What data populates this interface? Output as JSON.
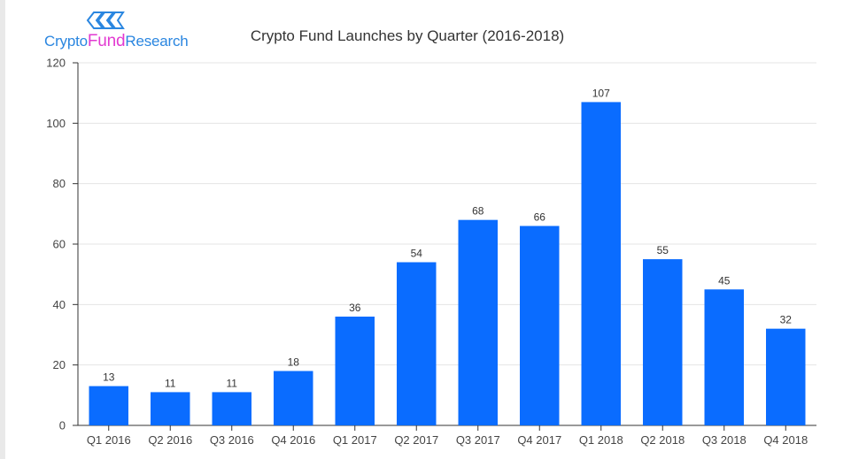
{
  "logo": {
    "part1": "Crypto",
    "part2": "Fund",
    "part3": "Research",
    "color_primary": "#2a86e0",
    "color_accent": "#e23ad1"
  },
  "chart_data": {
    "type": "bar",
    "title": "Crypto Fund Launches by Quarter (2016-2018)",
    "xlabel": "",
    "ylabel": "",
    "categories": [
      "Q1 2016",
      "Q2 2016",
      "Q3 2016",
      "Q4 2016",
      "Q1 2017",
      "Q2 2017",
      "Q3 2017",
      "Q4 2017",
      "Q1 2018",
      "Q2 2018",
      "Q3 2018",
      "Q4 2018"
    ],
    "values": [
      13,
      11,
      11,
      18,
      36,
      54,
      68,
      66,
      107,
      55,
      45,
      32
    ],
    "ylim": [
      0,
      120
    ],
    "yticks": [
      0,
      20,
      40,
      60,
      80,
      100,
      120
    ],
    "grid": true,
    "legend": "none",
    "bar_color": "#0a6cff",
    "data_labels": true
  }
}
